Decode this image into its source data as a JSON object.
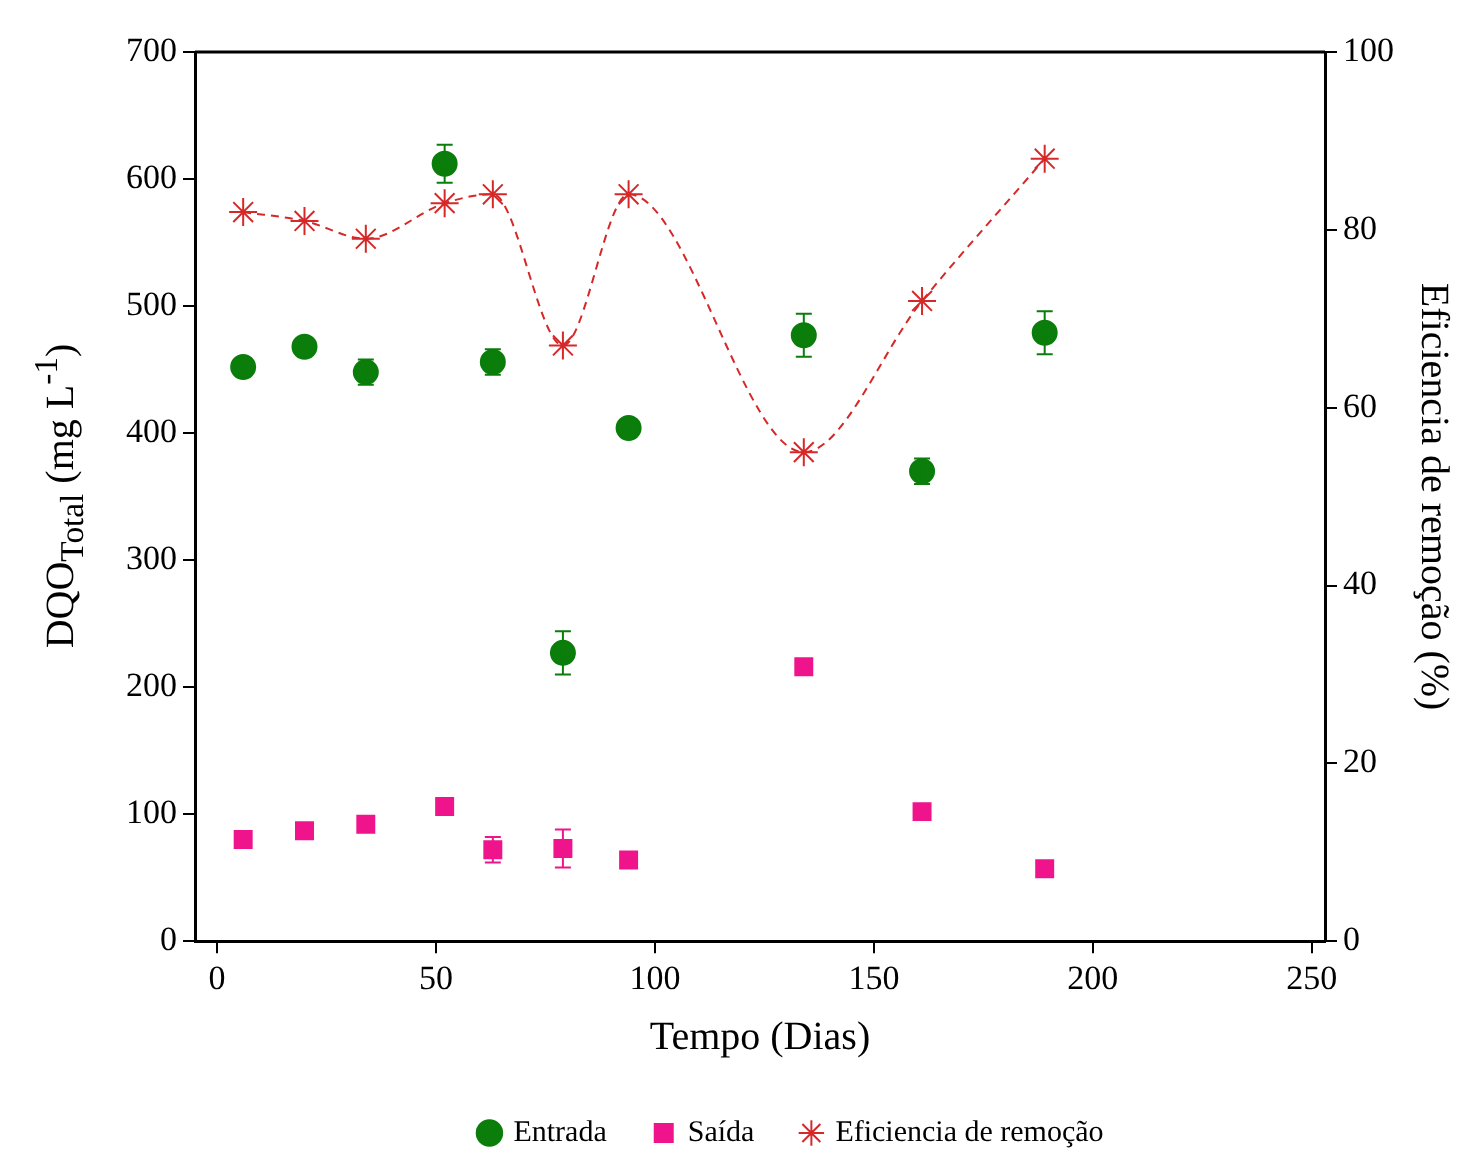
{
  "chart_data": {
    "type": "scatter",
    "xlabel": "Tempo (Dias)",
    "ylabel": "DQO$_{Total}$ (mg L$^{-1}$)",
    "y2label": "Eficiencia de remoção (%)",
    "x": [
      6,
      20,
      34,
      52,
      63,
      79,
      94,
      134,
      161,
      189
    ],
    "series": [
      {
        "name": "Entrada",
        "type": "scatter",
        "color": "#0a7d0a",
        "marker": "circle",
        "values": [
          452,
          468,
          448,
          612,
          456,
          227,
          404,
          477,
          370,
          479
        ],
        "errors": [
          null,
          null,
          10,
          15,
          10,
          17,
          null,
          17,
          10,
          17
        ]
      },
      {
        "name": "Saída",
        "type": "scatter",
        "color": "#f0148c",
        "marker": "square",
        "values": [
          80,
          87,
          92,
          106,
          72,
          73,
          64,
          216,
          102,
          57
        ],
        "errors": [
          null,
          null,
          null,
          null,
          10,
          15,
          null,
          null,
          null,
          null
        ]
      },
      {
        "name": "Eficiencia de remoção",
        "type": "line",
        "axis": "y2",
        "color": "#d62828",
        "marker": "cross",
        "line_style": "dashed",
        "values": [
          82,
          81,
          79,
          83,
          84,
          67,
          84,
          55,
          72,
          88
        ]
      }
    ],
    "xlim": [
      -5,
      253
    ],
    "xticks": [
      0,
      50,
      100,
      150,
      200,
      250
    ],
    "ylim": [
      0,
      700
    ],
    "yticks": [
      0,
      100,
      200,
      300,
      400,
      500,
      600,
      700
    ],
    "y2lim": [
      0,
      100
    ],
    "y2ticks": [
      0,
      20,
      40,
      60,
      80,
      100
    ],
    "legend": "bottom"
  }
}
